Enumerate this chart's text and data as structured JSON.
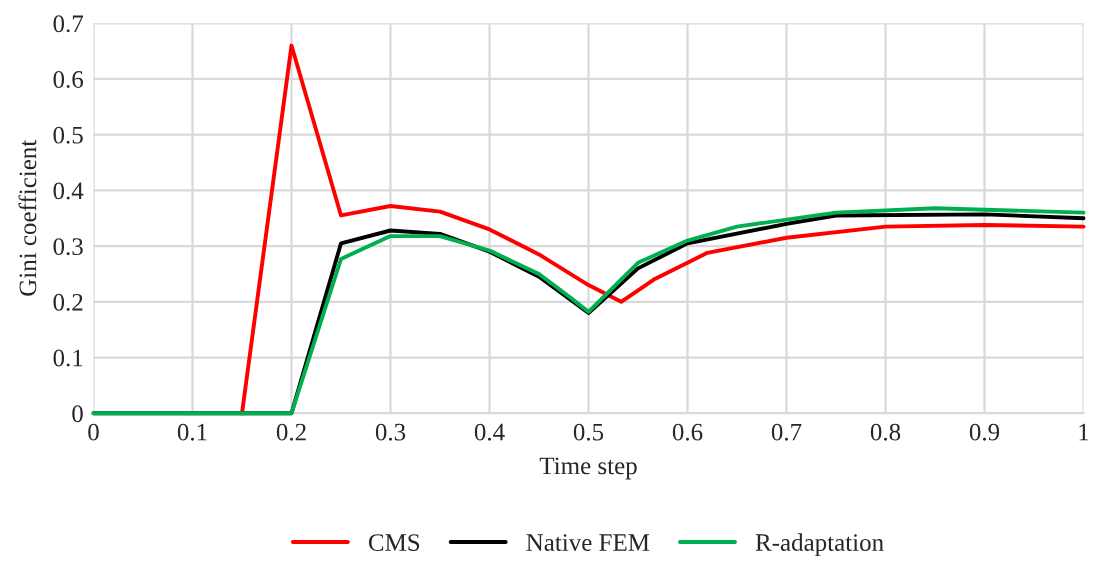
{
  "chart_data": {
    "type": "line",
    "xlabel": "Time step",
    "ylabel": "Gini coefficient",
    "xlim": [
      0,
      1
    ],
    "xticks": [
      0,
      0.1,
      0.2,
      0.3,
      0.4,
      0.5,
      0.6,
      0.7,
      0.8,
      0.9,
      1
    ],
    "ylim": [
      0,
      0.7
    ],
    "yticks": [
      0,
      0.1,
      0.2,
      0.3,
      0.4,
      0.5,
      0.6,
      0.7
    ],
    "grid": true,
    "legend": "bottom",
    "marker": "none",
    "line_style": "solid",
    "series": [
      {
        "name": "CMS",
        "color": "#ff0000",
        "x": [
          0.15,
          0.2,
          0.25,
          0.3,
          0.35,
          0.4,
          0.45,
          0.5,
          0.533,
          0.566,
          0.6,
          0.62,
          0.7,
          0.8,
          0.9,
          1
        ],
        "values": [
          0,
          0.66,
          0.355,
          0.372,
          0.362,
          0.33,
          0.285,
          0.23,
          0.2,
          0.24,
          0.27,
          0.288,
          0.315,
          0.335,
          0.338,
          0.335
        ]
      },
      {
        "name": "Native FEM",
        "color": "#000000",
        "x": [
          0,
          0.2,
          0.25,
          0.3,
          0.35,
          0.4,
          0.45,
          0.5,
          0.55,
          0.6,
          0.7,
          0.75,
          0.9,
          1
        ],
        "values": [
          0,
          0,
          0.305,
          0.328,
          0.322,
          0.29,
          0.245,
          0.18,
          0.26,
          0.305,
          0.34,
          0.355,
          0.357,
          0.35
        ]
      },
      {
        "name": "R-adaptation",
        "color": "#00b050",
        "x": [
          0,
          0.2,
          0.25,
          0.3,
          0.35,
          0.4,
          0.45,
          0.48,
          0.5,
          0.55,
          0.6,
          0.65,
          0.75,
          0.85,
          1
        ],
        "values": [
          0,
          0,
          0.277,
          0.318,
          0.318,
          0.292,
          0.25,
          0.21,
          0.182,
          0.27,
          0.31,
          0.335,
          0.36,
          0.368,
          0.36
        ]
      }
    ]
  }
}
